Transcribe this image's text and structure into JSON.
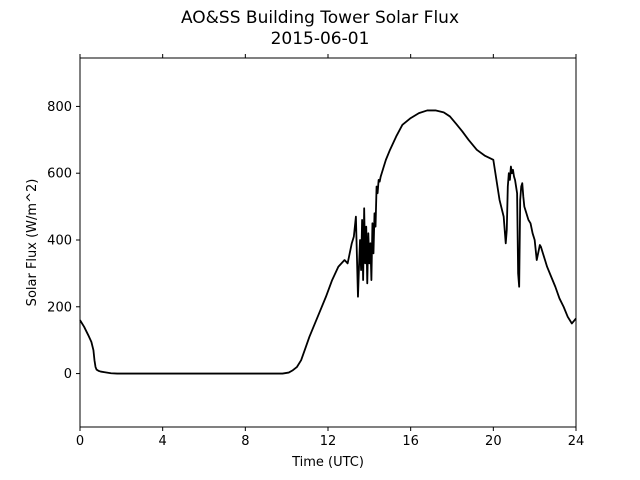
{
  "chart_data": {
    "type": "line",
    "title": "AO&SS Building Tower Solar Flux",
    "subtitle": "2015-06-01",
    "xlabel": "Time (UTC)",
    "ylabel": "Solar Flux (W/m^2)",
    "xlim": [
      0,
      24
    ],
    "ylim": [
      -160,
      945
    ],
    "xticks": [
      0,
      4,
      8,
      12,
      16,
      20,
      24
    ],
    "yticks": [
      0,
      200,
      400,
      600,
      800
    ],
    "grid": false,
    "line_color": "#000000",
    "series": [
      {
        "x": [
          0,
          0.2,
          0.4,
          0.55,
          0.65,
          0.7,
          0.75,
          0.8,
          0.9,
          1.0,
          1.2,
          1.5,
          1.8,
          2,
          4,
          6,
          8,
          9,
          9.8,
          10.1,
          10.3,
          10.5,
          10.7,
          10.9,
          11.1,
          11.3,
          11.6,
          11.9,
          12.2,
          12.5,
          12.8,
          12.95,
          13.05,
          13.15,
          13.25,
          13.35,
          13.45,
          13.5,
          13.55,
          13.6,
          13.65,
          13.7,
          13.75,
          13.8,
          13.85,
          13.9,
          13.95,
          14.0,
          14.05,
          14.1,
          14.15,
          14.2,
          14.25,
          14.3,
          14.35,
          14.4,
          14.45,
          14.5,
          14.55,
          14.6,
          14.65,
          14.7,
          14.8,
          15.0,
          15.3,
          15.6,
          16.0,
          16.4,
          16.8,
          17.2,
          17.6,
          17.9,
          18.2,
          18.5,
          18.8,
          19.2,
          19.6,
          20.0,
          20.3,
          20.5,
          20.6,
          20.65,
          20.7,
          20.75,
          20.8,
          20.85,
          20.9,
          20.95,
          21.0,
          21.05,
          21.1,
          21.15,
          21.2,
          21.25,
          21.3,
          21.35,
          21.4,
          21.45,
          21.5,
          21.55,
          21.6,
          21.65,
          21.7,
          21.8,
          21.9,
          22.0,
          22.1,
          22.2,
          22.25,
          22.3,
          22.35,
          22.4,
          22.5,
          22.6,
          22.8,
          23.0,
          23.2,
          23.4,
          23.6,
          23.8,
          24.0
        ],
        "y": [
          160,
          140,
          115,
          95,
          70,
          40,
          20,
          12,
          8,
          6,
          4,
          1,
          0,
          0,
          0,
          0,
          0,
          0,
          0,
          3,
          10,
          20,
          40,
          75,
          110,
          140,
          185,
          230,
          280,
          320,
          340,
          330,
          360,
          390,
          410,
          470,
          230,
          320,
          400,
          310,
          460,
          280,
          495,
          330,
          440,
          270,
          420,
          330,
          390,
          280,
          450,
          360,
          480,
          440,
          560,
          540,
          580,
          575,
          590,
          600,
          610,
          620,
          640,
          670,
          710,
          745,
          765,
          780,
          788,
          788,
          782,
          770,
          748,
          725,
          700,
          670,
          652,
          640,
          520,
          470,
          390,
          430,
          560,
          600,
          580,
          620,
          600,
          610,
          590,
          580,
          560,
          540,
          300,
          260,
          520,
          560,
          570,
          530,
          500,
          490,
          480,
          470,
          460,
          450,
          420,
          400,
          340,
          370,
          385,
          380,
          370,
          360,
          340,
          320,
          290,
          260,
          225,
          200,
          170,
          150,
          165
        ]
      }
    ]
  }
}
